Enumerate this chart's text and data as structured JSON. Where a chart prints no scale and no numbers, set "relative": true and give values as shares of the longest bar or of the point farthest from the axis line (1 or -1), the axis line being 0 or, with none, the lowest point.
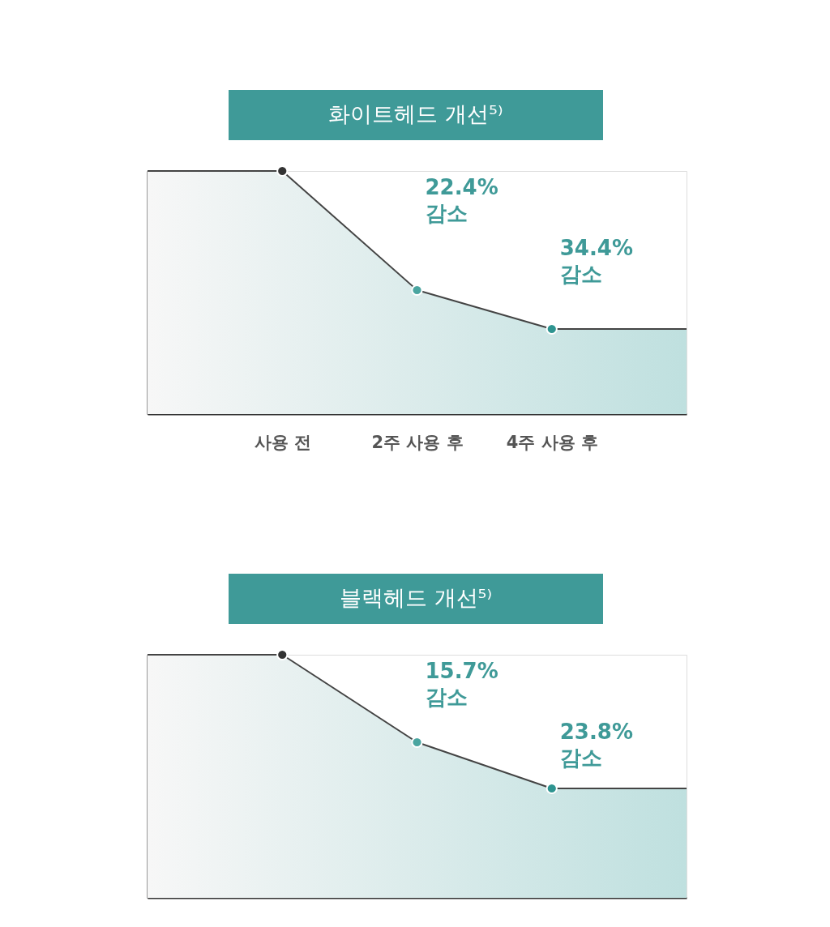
{
  "chart_data": [
    {
      "type": "area",
      "title": "화이트헤드 개선⁵⁾",
      "relative": true,
      "tick_labels": "x",
      "categories": [
        null,
        "사용 전",
        "2주 사용 후",
        "4주 사용 후",
        null
      ],
      "series": [
        {
          "color": "#bfe0df",
          "values": [
            1,
            1,
            0.51,
            0.35,
            0.35
          ],
          "colors": [
            null,
            "#333333",
            "#4aa5a0",
            "#2e9490",
            null
          ]
        }
      ],
      "annotations": [
        "22.4%\n감소",
        "34.4%\n감소"
      ]
    },
    {
      "type": "area",
      "title": "블랙헤드 개선⁵⁾",
      "relative": true,
      "tick_labels": false,
      "categories": [
        null,
        null,
        null,
        null,
        null
      ],
      "series": [
        {
          "color": "#bfe0df",
          "values": [
            1,
            1,
            0.64,
            0.45,
            0.45
          ],
          "colors": [
            null,
            "#333333",
            "#4aa5a0",
            "#2e9490",
            null
          ]
        }
      ],
      "annotations": [
        "15.7%\n감소",
        "23.8%\n감소"
      ]
    }
  ]
}
